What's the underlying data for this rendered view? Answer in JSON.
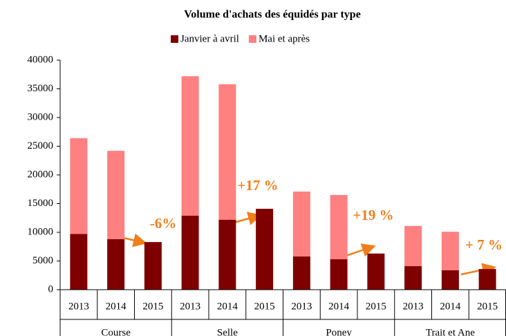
{
  "chart_data": {
    "type": "stacked_bar",
    "title": "Volume d'achats des équidés par type",
    "categories": [
      "2013",
      "2014",
      "2015",
      "2013",
      "2014",
      "2015",
      "2013",
      "2014",
      "2015",
      "2013",
      "2014",
      "2015"
    ],
    "groups": [
      "Course",
      "Selle",
      "Poney",
      "Trait et Ane"
    ],
    "series": [
      {
        "name": "Janvier à avril",
        "color": "#7f0000",
        "values": [
          9700,
          8800,
          8300,
          12900,
          12200,
          14100,
          5800,
          5300,
          6300,
          4100,
          3400,
          3600
        ]
      },
      {
        "name": "Mai et après",
        "color": "#ff8080",
        "values": [
          16700,
          15400,
          null,
          24300,
          23600,
          null,
          11300,
          11200,
          null,
          7000,
          6700,
          null
        ]
      }
    ],
    "annotations": [
      "-6%",
      "+17 %",
      "+19 %",
      "+ 7 %"
    ],
    "ylim": [
      0,
      40000
    ],
    "yticks": [
      0,
      5000,
      10000,
      15000,
      20000,
      25000,
      30000,
      35000,
      40000
    ],
    "grid": false
  }
}
